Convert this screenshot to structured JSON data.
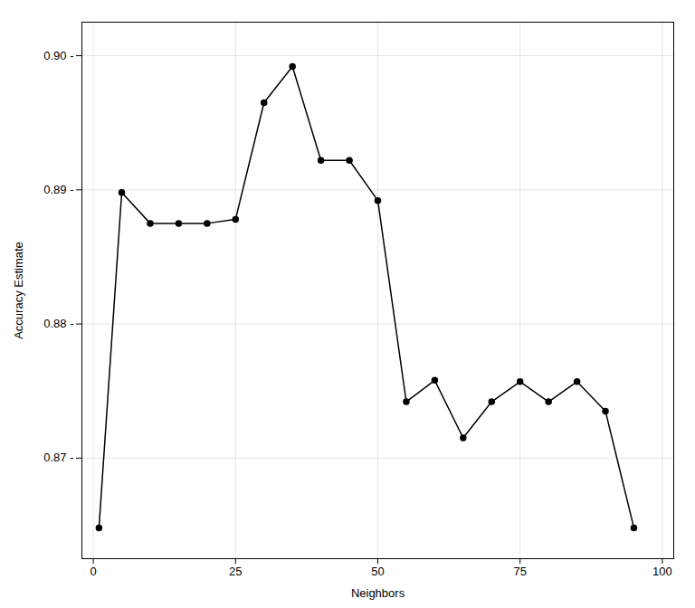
{
  "chart_data": {
    "type": "line",
    "x": [
      1,
      5,
      10,
      15,
      20,
      25,
      30,
      35,
      40,
      45,
      50,
      55,
      60,
      65,
      70,
      75,
      80,
      85,
      90,
      95
    ],
    "values": [
      0.8648,
      0.8898,
      0.8875,
      0.8875,
      0.8875,
      0.8878,
      0.8965,
      0.8992,
      0.8922,
      0.8922,
      0.8892,
      0.8742,
      0.8758,
      0.8715,
      0.8742,
      0.8757,
      0.8742,
      0.8757,
      0.8735,
      0.8648
    ],
    "xlabel": "Neighbors",
    "ylabel": "Accuracy Estimate",
    "xlim": [
      -2,
      102
    ],
    "ylim": [
      0.8625,
      0.9025
    ],
    "xticks": [
      0,
      25,
      50,
      75,
      100
    ],
    "yticks": [
      {
        "value": 0.87,
        "label": "0.87 -"
      },
      {
        "value": 0.88,
        "label": "0.88 -"
      },
      {
        "value": 0.89,
        "label": "0.89 -"
      },
      {
        "value": 0.9,
        "label": "0.90 -"
      }
    ],
    "color": "#000000",
    "marker": "circle",
    "grid": true
  }
}
